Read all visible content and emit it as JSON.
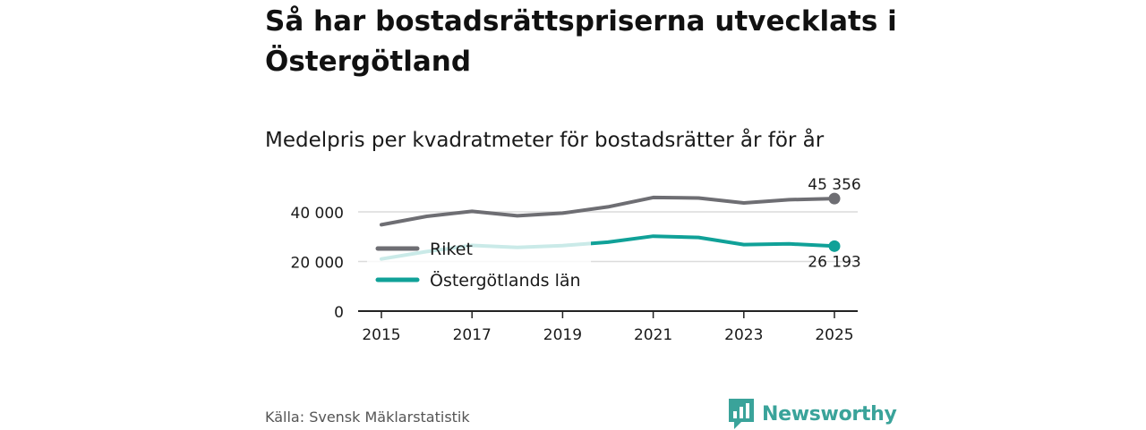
{
  "chart_data": {
    "type": "line",
    "title": "Så har bostadsrättspriserna utvecklats i Östergötland",
    "subtitle": "Medelpris per kvadratmeter för bostadsrätter år för år",
    "x": [
      2015,
      2016,
      2017,
      2018,
      2019,
      2020,
      2021,
      2022,
      2023,
      2024,
      2025
    ],
    "x_tick_labels": [
      "2015",
      "2017",
      "2019",
      "2021",
      "2023",
      "2025"
    ],
    "y_ticks": [
      0,
      20000,
      40000
    ],
    "y_tick_labels": [
      "0",
      "20 000",
      "40 000"
    ],
    "ylim": [
      0,
      50000
    ],
    "xlim": [
      2014.75,
      2025.3
    ],
    "grid": true,
    "legend_position": "left, inside plot",
    "series": [
      {
        "name": "Riket",
        "color": "#6e6e73",
        "values": [
          34800,
          38200,
          40200,
          38400,
          39500,
          42000,
          45800,
          45600,
          43600,
          44900,
          45356
        ],
        "end_label": "45 356"
      },
      {
        "name": "Östergötlands län",
        "color": "#10a198",
        "values": [
          21000,
          24000,
          26500,
          25700,
          26400,
          27800,
          30200,
          29700,
          26800,
          27100,
          26193
        ],
        "end_label": "26 193"
      }
    ]
  },
  "footer": {
    "source": "Källa: Svensk Mäklarstatistik",
    "brand": "Newsworthy",
    "brand_color": "#3aa39a"
  }
}
